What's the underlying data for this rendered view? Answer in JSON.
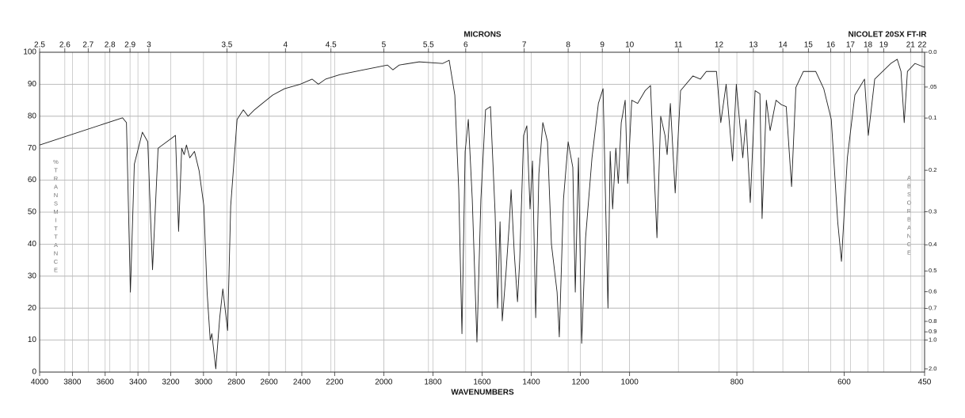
{
  "chart_data": {
    "type": "line",
    "title": "NICOLET 20SX FT-IR",
    "xlabel": "WAVENUMBERS",
    "x2label": "MICRONS",
    "ylabel": "%TRANSMITTANCE",
    "y2label": "ABSORBANCE",
    "color": "#222222",
    "grid": true,
    "xlim": [
      4000,
      450
    ],
    "x_scale_breaks": [
      2200,
      1000
    ],
    "xticks": [
      4000,
      3800,
      3600,
      3400,
      3200,
      3000,
      2800,
      2600,
      2400,
      2200,
      2000,
      1800,
      1600,
      1400,
      1200,
      1000,
      800,
      600,
      450
    ],
    "x2ticks": [
      2.5,
      2.6,
      2.7,
      2.8,
      2.9,
      3,
      3.5,
      4,
      4.5,
      5,
      5.5,
      6,
      7,
      8,
      9,
      10,
      11,
      12,
      13,
      14,
      15,
      16,
      17,
      18,
      19,
      21,
      22
    ],
    "ylim": [
      0,
      100
    ],
    "yticks": [
      0,
      10,
      20,
      30,
      40,
      50,
      60,
      70,
      80,
      90,
      100
    ],
    "y2ticks": [
      {
        "value": 0,
        "label": "0.0"
      },
      {
        "value": 0.05,
        "label": ".05"
      },
      0.1,
      0.2,
      0.3,
      0.4,
      0.5,
      0.6,
      0.7,
      0.8,
      0.9,
      {
        "value": 1,
        "label": "1.0"
      },
      {
        "value": 2,
        "label": "2.0"
      }
    ],
    "x": [
      4000,
      3494,
      3470,
      3446,
      3422,
      3373,
      3340,
      3311,
      3277,
      3171,
      3152,
      3133,
      3118,
      3104,
      3084,
      3055,
      3027,
      2998,
      2978,
      2959,
      2949,
      2925,
      2901,
      2882,
      2853,
      2834,
      2795,
      2757,
      2728,
      2689,
      2641,
      2578,
      2506,
      2410,
      2337,
      2299,
      2255,
      2179,
      2082,
      1985,
      1963,
      1937,
      1856,
      1760,
      1734,
      1711,
      1695,
      1682,
      1669,
      1656,
      1640,
      1621,
      1605,
      1586,
      1566,
      1547,
      1537,
      1527,
      1518,
      1502,
      1489,
      1482,
      1469,
      1456,
      1447,
      1431,
      1418,
      1405,
      1395,
      1382,
      1369,
      1353,
      1340,
      1334,
      1318,
      1295,
      1286,
      1269,
      1250,
      1231,
      1221,
      1208,
      1195,
      1179,
      1153,
      1127,
      1108,
      1088,
      1079,
      1069,
      1056,
      1046,
      1034,
      1018,
      1008,
      996,
      985,
      971,
      961,
      949,
      942,
      934,
      930,
      924,
      915,
      905,
      882,
      868,
      857,
      838,
      830,
      820,
      808,
      801,
      789,
      783,
      775,
      766,
      757,
      753,
      745,
      738,
      727,
      717,
      708,
      698,
      690,
      676,
      653,
      638,
      624,
      612,
      605,
      594,
      580,
      562,
      555,
      543,
      513,
      501,
      494,
      488,
      482,
      468,
      450
    ],
    "values": [
      71,
      79.5,
      78,
      25,
      65,
      75,
      72,
      32,
      70,
      74,
      44,
      70,
      68,
      71,
      67,
      69,
      63,
      52,
      25,
      10,
      12,
      1,
      17,
      26,
      13,
      52,
      79,
      82,
      80,
      82,
      84,
      86.6,
      88.6,
      90,
      91.6,
      90,
      91.6,
      93,
      94.5,
      96,
      94.5,
      96,
      97,
      96.5,
      97.5,
      86.6,
      57,
      12,
      69,
      79,
      54,
      9.4,
      54,
      82,
      83,
      49.5,
      20,
      47,
      16,
      32,
      47,
      57,
      37,
      22,
      35,
      74,
      77,
      51,
      66,
      17,
      62,
      78,
      74,
      72,
      40,
      25,
      11,
      54,
      72,
      64,
      25,
      67,
      9,
      42,
      67,
      84,
      88.6,
      20,
      69,
      51,
      70,
      59,
      78,
      85,
      59,
      85,
      84,
      88,
      89.6,
      42,
      80,
      74,
      68,
      84,
      56,
      88,
      92.6,
      91.6,
      94,
      94,
      78,
      90,
      66,
      90,
      67,
      79,
      53,
      88,
      87,
      48,
      85,
      75.5,
      85,
      83.6,
      83,
      58,
      89,
      94,
      94,
      88.6,
      79,
      47,
      34.6,
      67,
      86.6,
      91.6,
      74,
      91.6,
      96.5,
      97.8,
      94,
      78,
      94,
      96.5,
      95.3
    ]
  }
}
